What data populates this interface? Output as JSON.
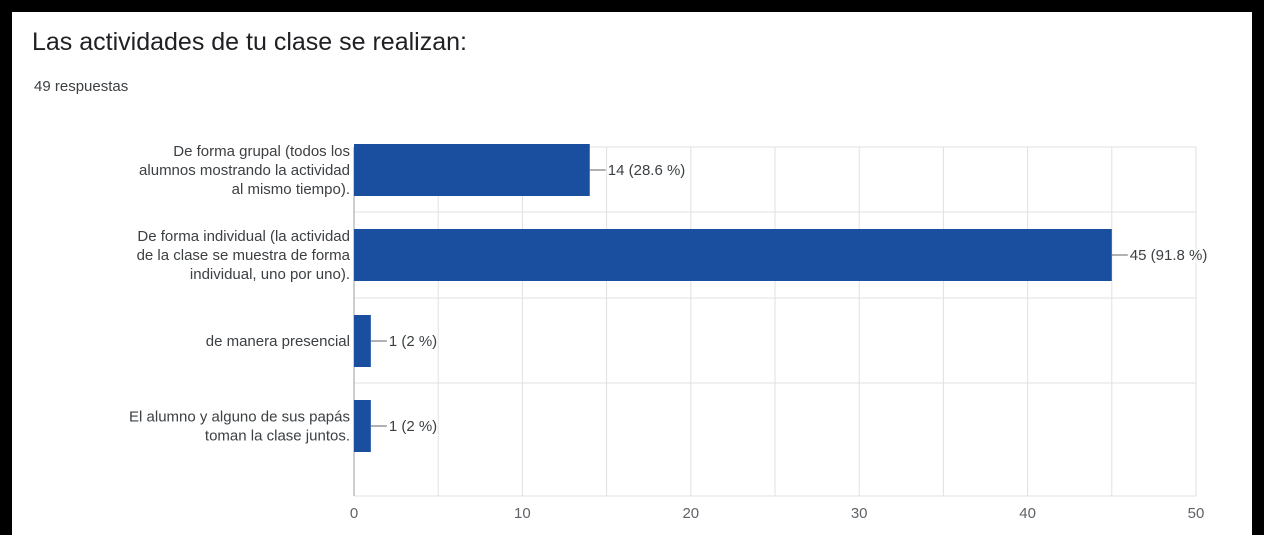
{
  "question": {
    "title": "Las actividades de tu clase se realizan:",
    "responses": "49 respuestas"
  },
  "colors": {
    "bar": "#1a4fa0",
    "grid": "#e0e0e0",
    "axis": "#9e9e9e"
  },
  "chart_data": {
    "type": "bar",
    "orientation": "horizontal",
    "categories": [
      [
        "De forma grupal (todos los",
        "alumnos mostrando la actividad",
        "al mismo tiempo)."
      ],
      [
        "De forma individual (la actividad",
        "de la clase se muestra de forma",
        "individual, uno por uno)."
      ],
      [
        "de manera presencial"
      ],
      [
        "El alumno y alguno de sus papás",
        "toman la clase juntos."
      ]
    ],
    "values": [
      14,
      45,
      1,
      1
    ],
    "data_labels": [
      "14 (28.6 %)",
      "45 (91.8 %)",
      "1 (2 %)",
      "1 (2 %)"
    ],
    "xticks": [
      0,
      10,
      20,
      30,
      40,
      50
    ],
    "xlim": [
      0,
      50
    ],
    "grid": true
  }
}
